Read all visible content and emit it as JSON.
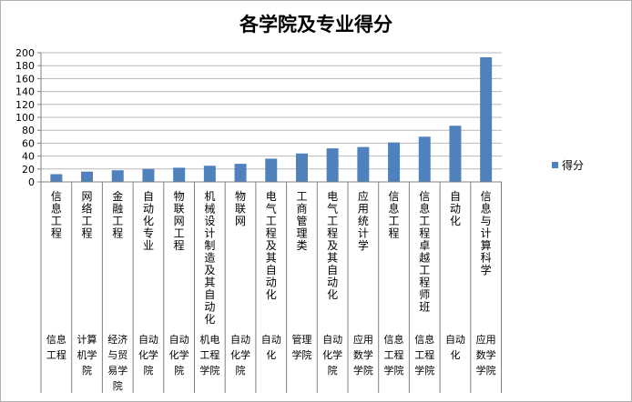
{
  "chart_data": {
    "type": "bar",
    "title": "各学院及专业得分",
    "xlabel": "",
    "ylabel": "",
    "ylim": [
      0,
      200
    ],
    "yticks": [
      0,
      20,
      40,
      60,
      80,
      100,
      120,
      140,
      160,
      180,
      200
    ],
    "grid": true,
    "legend_position": "right",
    "bar_color": "#4F81BD",
    "categories": [
      {
        "major": "信息工程",
        "college": "信息工程"
      },
      {
        "major": "网络工程",
        "college": "计算机学院"
      },
      {
        "major": "金融工程",
        "college": "经济与贸易学院"
      },
      {
        "major": "自动化专业",
        "college": "自动化学院"
      },
      {
        "major": "物联网工程",
        "college": "自动化学院"
      },
      {
        "major": "机械设计制造及其自动化",
        "college": "机电工程学院"
      },
      {
        "major": "物联网",
        "college": "自动化学院"
      },
      {
        "major": "电气工程及其自动化",
        "college": "自动化"
      },
      {
        "major": "工商管理类",
        "college": "管理学院"
      },
      {
        "major": "电气工程及其自动化",
        "college": "自动化学院"
      },
      {
        "major": "应用统计学",
        "college": "应用数学学院"
      },
      {
        "major": "信息工程",
        "college": "信息工程学院"
      },
      {
        "major": "信息工程卓越工程师班",
        "college": "信息工程学院"
      },
      {
        "major": "自动化",
        "college": "自动化"
      },
      {
        "major": "信息与计算科学",
        "college": "应用数学学院"
      }
    ],
    "series": [
      {
        "name": "得分",
        "values": [
          12,
          16,
          18,
          20,
          22,
          25,
          28,
          36,
          44,
          52,
          54,
          61,
          70,
          87,
          193
        ]
      }
    ]
  }
}
